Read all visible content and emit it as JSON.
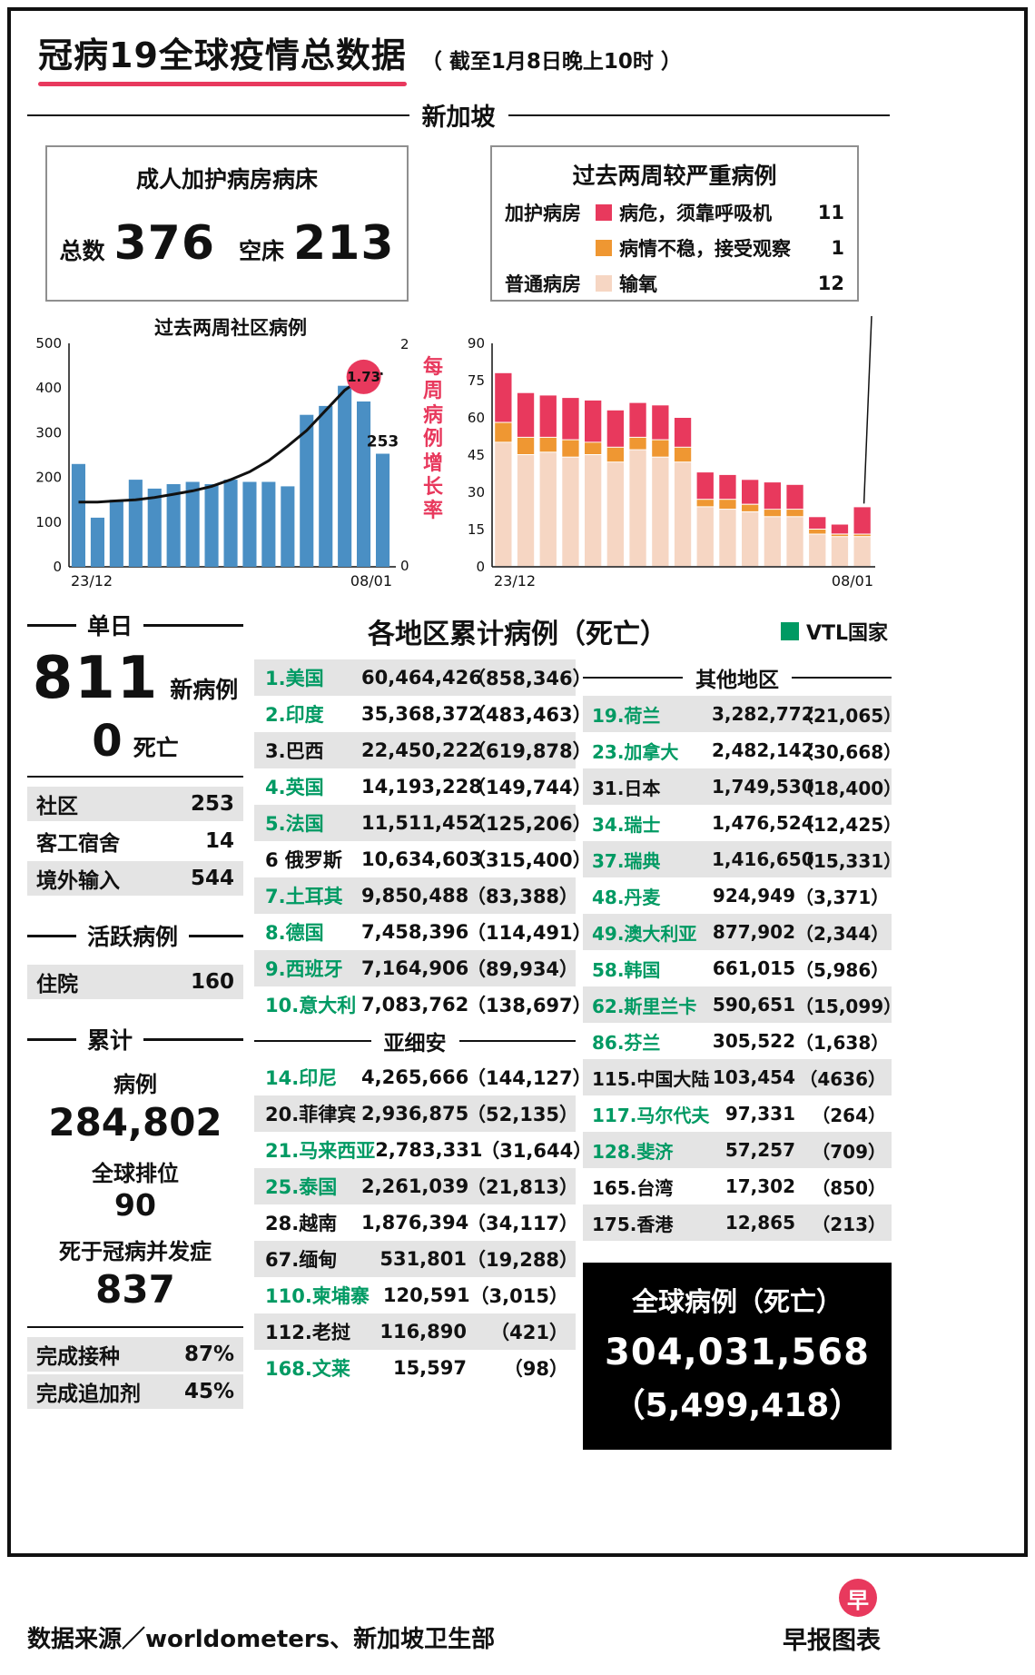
{
  "header": {
    "title": "冠病19全球疫情总数据",
    "subtitle": "（ 截至1月8日晚上10时 ）"
  },
  "colors": {
    "red": "#e8395d",
    "orange": "#ef9732",
    "pink": "#f6d6c3",
    "blue": "#4a8fc4",
    "green": "#009a63",
    "stripe": "#e4e4e4"
  },
  "singapore": {
    "section_label": "新加坡",
    "icu_beds": {
      "title": "成人加护病房病床",
      "total_label": "总数",
      "total": "376",
      "empty_label": "空床",
      "empty": "213"
    },
    "severe": {
      "title": "过去两周较严重病例",
      "rows": [
        {
          "group": "加护病房",
          "label": "病危，须靠呼吸机",
          "value": "11",
          "color": "#e8395d"
        },
        {
          "group": "",
          "label": "病情不稳，接受观察",
          "value": "1",
          "color": "#ef9732"
        },
        {
          "group": "普通病房",
          "label": "输氧",
          "value": "12",
          "color": "#f6d6c3"
        }
      ]
    }
  },
  "chart_data": [
    {
      "id": "community",
      "type": "bar",
      "title": "过去两周社区病例",
      "categories": [
        "23/12",
        "24/12",
        "25/12",
        "26/12",
        "27/12",
        "28/12",
        "29/12",
        "30/12",
        "31/12",
        "01/01",
        "02/01",
        "03/01",
        "04/01",
        "05/01",
        "06/01",
        "07/01",
        "08/01"
      ],
      "bar_series": {
        "name": "社区病例",
        "color": "#4a8fc4",
        "values": [
          230,
          110,
          150,
          195,
          175,
          185,
          190,
          185,
          195,
          190,
          190,
          180,
          340,
          360,
          405,
          370,
          253
        ]
      },
      "line_series": {
        "name": "每周病例增长率",
        "color": "#111111",
        "values": [
          0.58,
          0.58,
          0.59,
          0.6,
          0.62,
          0.65,
          0.68,
          0.72,
          0.78,
          0.85,
          0.95,
          1.08,
          1.22,
          1.4,
          1.58,
          1.7,
          1.73
        ],
        "end_label": "1.73"
      },
      "ylim": [
        0,
        500
      ],
      "y_ticks": [
        0,
        100,
        200,
        300,
        400,
        500
      ],
      "y2lim": [
        0,
        2
      ],
      "y2_ticks": [
        0,
        2
      ],
      "y2_axis_label": "每周病例增长率",
      "last_bar_label": "253",
      "x_tick_labels": [
        "23/12",
        "08/01"
      ],
      "grid": false,
      "legend_position": "none"
    },
    {
      "id": "severe",
      "type": "bar",
      "subtype": "stacked",
      "title": "",
      "categories": [
        "23/12",
        "24/12",
        "25/12",
        "26/12",
        "27/12",
        "28/12",
        "29/12",
        "30/12",
        "31/12",
        "01/01",
        "02/01",
        "03/01",
        "04/01",
        "05/01",
        "06/01",
        "07/01",
        "08/01"
      ],
      "series": [
        {
          "name": "输氧",
          "color": "#f6d6c3",
          "values": [
            50,
            45,
            46,
            44,
            45,
            42,
            47,
            44,
            42,
            24,
            23,
            22,
            20,
            20,
            13,
            12,
            12
          ]
        },
        {
          "name": "病情不稳，接受观察",
          "color": "#ef9732",
          "values": [
            8,
            7,
            6,
            7,
            5,
            6,
            5,
            7,
            6,
            3,
            4,
            3,
            3,
            3,
            2,
            1,
            1
          ]
        },
        {
          "name": "病危，须靠呼吸机",
          "color": "#e8395d",
          "values": [
            20,
            18,
            17,
            17,
            17,
            15,
            14,
            14,
            12,
            11,
            10,
            10,
            11,
            10,
            5,
            4,
            11
          ]
        }
      ],
      "ylim": [
        0,
        90
      ],
      "y_ticks": [
        0,
        15,
        30,
        45,
        60,
        75,
        90
      ],
      "x_tick_labels": [
        "23/12",
        "08/01"
      ],
      "grid": false,
      "legend_position": "none",
      "callout_to_last_bar": true
    }
  ],
  "daily": {
    "header": "单日",
    "new_cases": "811",
    "new_cases_label": "新病例",
    "deaths": "0",
    "deaths_label": "死亡",
    "breakdown": [
      {
        "label": "社区",
        "value": "253"
      },
      {
        "label": "客工宿舍",
        "value": "14"
      },
      {
        "label": "境外输入",
        "value": "544"
      }
    ],
    "active_header": "活跃病例",
    "hospitalized": {
      "label": "住院",
      "value": "160"
    },
    "cumulative_header": "累计",
    "cases_label": "病例",
    "cases_total": "284,802",
    "rank_label": "全球排位",
    "rank": "90",
    "covid_deaths_label": "死于冠病并发症",
    "covid_deaths": "837",
    "vaccination": [
      {
        "label": "完成接种",
        "value": "87%"
      },
      {
        "label": "完成追加剂",
        "value": "45%"
      }
    ]
  },
  "table": {
    "title": "各地区累计病例（死亡）",
    "legend": "VTL国家",
    "legend_color": "#009a63",
    "asean_header": "亚细安",
    "others_header": "其他地区",
    "main": [
      {
        "name": "1.美国",
        "cases": "60,464,426",
        "deaths": "858,346",
        "vtl": true
      },
      {
        "name": "2.印度",
        "cases": "35,368,372",
        "deaths": "483,463",
        "vtl": true
      },
      {
        "name": "3.巴西",
        "cases": "22,450,222",
        "deaths": "619,878",
        "vtl": false
      },
      {
        "name": "4.英国",
        "cases": "14,193,228",
        "deaths": "149,744",
        "vtl": true
      },
      {
        "name": "5.法国",
        "cases": "11,511,452",
        "deaths": "125,206",
        "vtl": true
      },
      {
        "name": "6 俄罗斯",
        "cases": "10,634,603",
        "deaths": "315,400",
        "vtl": false
      },
      {
        "name": "7.土耳其",
        "cases": "9,850,488",
        "deaths": "83,388",
        "vtl": true
      },
      {
        "name": "8.德国",
        "cases": "7,458,396",
        "deaths": "114,491",
        "vtl": true
      },
      {
        "name": "9.西班牙",
        "cases": "7,164,906",
        "deaths": "89,934",
        "vtl": true
      },
      {
        "name": "10.意大利",
        "cases": "7,083,762",
        "deaths": "138,697",
        "vtl": true
      }
    ],
    "asean": [
      {
        "name": "14.印尼",
        "cases": "4,265,666",
        "deaths": "144,127",
        "vtl": true
      },
      {
        "name": "20.菲律宾",
        "cases": "2,936,875",
        "deaths": "52,135",
        "vtl": false
      },
      {
        "name": "21.马来西亚",
        "cases": "2,783,331",
        "deaths": "31,644",
        "vtl": true
      },
      {
        "name": "25.泰国",
        "cases": "2,261,039",
        "deaths": "21,813",
        "vtl": true
      },
      {
        "name": "28.越南",
        "cases": "1,876,394",
        "deaths": "34,117",
        "vtl": false
      },
      {
        "name": "67.缅甸",
        "cases": "531,801",
        "deaths": "19,288",
        "vtl": false
      },
      {
        "name": "110.柬埔寨",
        "cases": "120,591",
        "deaths": "3,015",
        "vtl": true
      },
      {
        "name": "112.老挝",
        "cases": "116,890",
        "deaths": "421",
        "vtl": false
      },
      {
        "name": "168.文莱",
        "cases": "15,597",
        "deaths": "98",
        "vtl": true
      }
    ],
    "others": [
      {
        "name": "19.荷兰",
        "cases": "3,282,772",
        "deaths": "21,065",
        "vtl": true
      },
      {
        "name": "23.加拿大",
        "cases": "2,482,142",
        "deaths": "30,668",
        "vtl": true
      },
      {
        "name": "31.日本",
        "cases": "1,749,530",
        "deaths": "18,400",
        "vtl": false
      },
      {
        "name": "34.瑞士",
        "cases": "1,476,524",
        "deaths": "12,425",
        "vtl": true
      },
      {
        "name": "37.瑞典",
        "cases": "1,416,650",
        "deaths": "15,331",
        "vtl": true
      },
      {
        "name": "48.丹麦",
        "cases": "924,949",
        "deaths": "3,371",
        "vtl": true
      },
      {
        "name": "49.澳大利亚",
        "cases": "877,902",
        "deaths": "2,344",
        "vtl": true
      },
      {
        "name": "58.韩国",
        "cases": "661,015",
        "deaths": "5,986",
        "vtl": true
      },
      {
        "name": "62.斯里兰卡",
        "cases": "590,651",
        "deaths": "15,099",
        "vtl": true
      },
      {
        "name": "86.芬兰",
        "cases": "305,522",
        "deaths": "1,638",
        "vtl": true
      },
      {
        "name": "115.中国大陆",
        "cases": "103,454",
        "deaths": "4636",
        "vtl": false
      },
      {
        "name": "117.马尔代夫",
        "cases": "97,331",
        "deaths": "264",
        "vtl": true
      },
      {
        "name": "128.斐济",
        "cases": "57,257",
        "deaths": "709",
        "vtl": true
      },
      {
        "name": "165.台湾",
        "cases": "17,302",
        "deaths": "850",
        "vtl": false
      },
      {
        "name": "175.香港",
        "cases": "12,865",
        "deaths": "213",
        "vtl": false
      }
    ]
  },
  "global": {
    "title": "全球病例（死亡）",
    "cases": "304,031,568",
    "deaths": "5,499,418"
  },
  "footer": {
    "source": "数据来源／worldometers、新加坡卫生部",
    "credit": "早报图表",
    "logo": "早"
  }
}
